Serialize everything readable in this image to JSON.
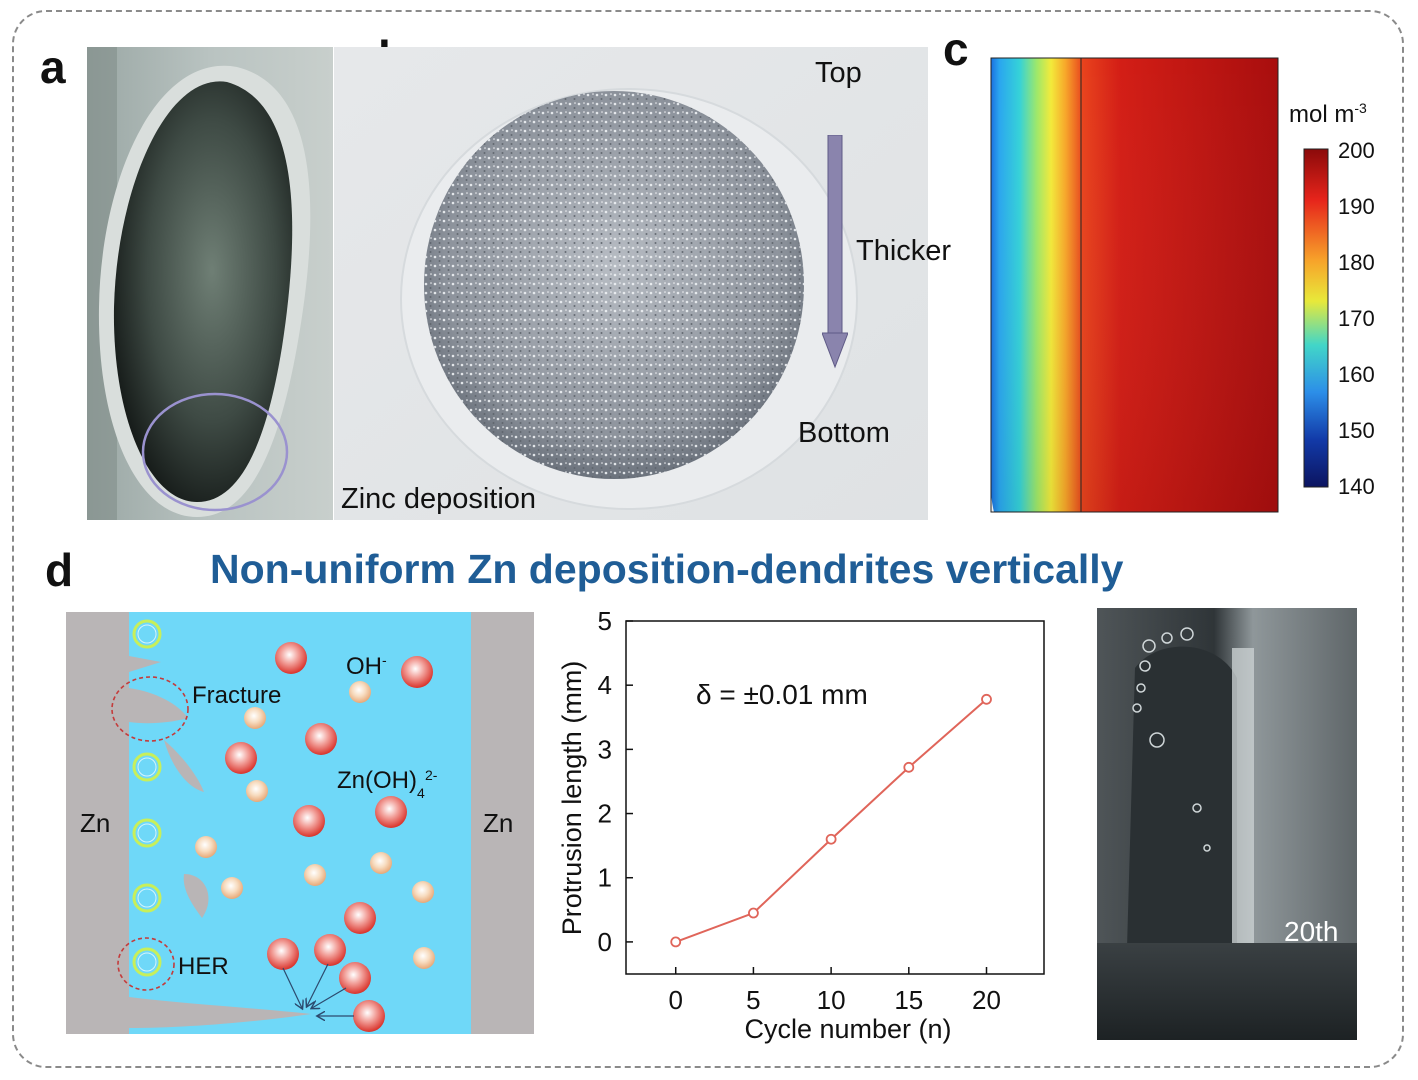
{
  "panels": {
    "a": {
      "letter": "a"
    },
    "b": {
      "letter": "b",
      "top_label": "Top",
      "arrow_label": "Thicker",
      "bottom_label": "Bottom",
      "caption": "Zinc deposition"
    },
    "c": {
      "letter": "c",
      "colorbar_unit": "mol m",
      "colorbar_unit_sup": "-3",
      "colorbar_ticks": [
        "200",
        "190",
        "180",
        "170",
        "160",
        "150",
        "140"
      ],
      "colorbar_range": [
        140,
        200
      ]
    },
    "d": {
      "letter": "d",
      "title": "Non-uniform Zn deposition-dendrites vertically",
      "schematic": {
        "zn_left": "Zn",
        "zn_right": "Zn",
        "oh": "OH",
        "oh_sup": "-",
        "fracture": "Fracture",
        "zincate": "Zn(OH)",
        "zincate_sub": "4",
        "zincate_sup": "2-",
        "her": "HER"
      },
      "photo_label": "20th"
    }
  },
  "colors": {
    "electrolyte": "#6fd8f8",
    "electrode": "#b9b5b6",
    "title_blue": "#1f5d96",
    "line_red": "#e0655a",
    "frame": "#8a8a8a"
  },
  "chart_data": {
    "type": "line",
    "x": [
      0,
      5,
      10,
      15,
      20
    ],
    "series": [
      {
        "values": [
          0,
          0.45,
          1.6,
          2.72,
          3.78
        ]
      }
    ],
    "xlabel": "Cycle number (n)",
    "ylabel": "Protrusion length (mm)",
    "xticks": [
      "0",
      "5",
      "10",
      "15",
      "20"
    ],
    "yticks": [
      "0",
      "1",
      "2",
      "3",
      "4",
      "5"
    ],
    "xlim": [
      -3.2,
      23.7
    ],
    "ylim": [
      -0.5,
      5
    ],
    "annotation": "δ = ±0.01 mm",
    "grid": false
  }
}
